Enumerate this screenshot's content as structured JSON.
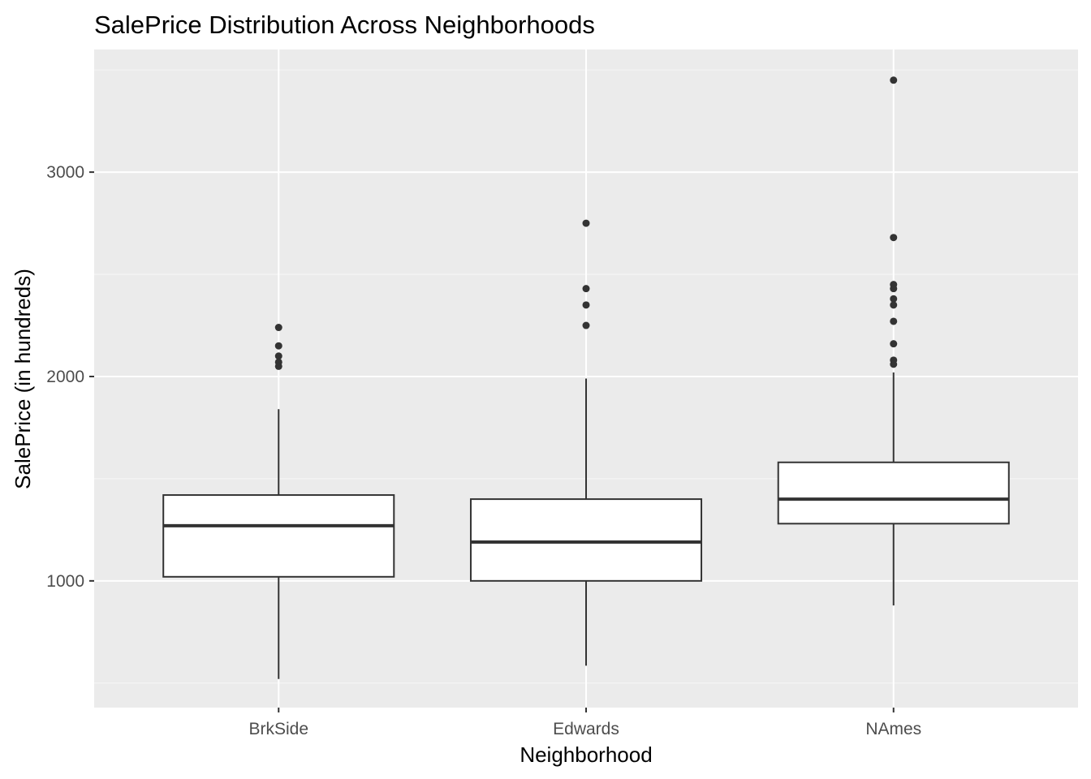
{
  "chart_data": {
    "type": "boxplot",
    "title": "SalePrice Distribution Across Neighborhoods",
    "xlabel": "Neighborhood",
    "ylabel": "SalePrice (in hundreds)",
    "categories": [
      "BrkSide",
      "Edwards",
      "NAmes"
    ],
    "y_ticks": [
      1000,
      2000,
      3000
    ],
    "y_minor_ticks": [
      500,
      1500,
      2500,
      3500
    ],
    "ylim": [
      380,
      3600
    ],
    "grid": true,
    "legend": "none",
    "boxes": [
      {
        "category": "BrkSide",
        "whisker_low": 520,
        "q1": 1020,
        "median": 1270,
        "q3": 1420,
        "whisker_high": 1840,
        "outliers": [
          2240,
          2150,
          2100,
          2070,
          2050
        ]
      },
      {
        "category": "Edwards",
        "whisker_low": 585,
        "q1": 1000,
        "median": 1190,
        "q3": 1400,
        "whisker_high": 1990,
        "outliers": [
          2750,
          2430,
          2350,
          2250
        ]
      },
      {
        "category": "NAmes",
        "whisker_low": 880,
        "q1": 1280,
        "median": 1400,
        "q3": 1580,
        "whisker_high": 2020,
        "outliers": [
          3450,
          2680,
          2450,
          2430,
          2380,
          2350,
          2270,
          2160,
          2080,
          2060
        ]
      }
    ],
    "colors": {
      "panel_background": "#ebebeb",
      "grid_major": "#ffffff",
      "grid_minor": "#f5f5f5",
      "box_fill": "#ffffff",
      "box_stroke": "#333333",
      "outlier": "#333333",
      "tick_label": "#4d4d4d",
      "tick_mark": "#333333"
    }
  }
}
